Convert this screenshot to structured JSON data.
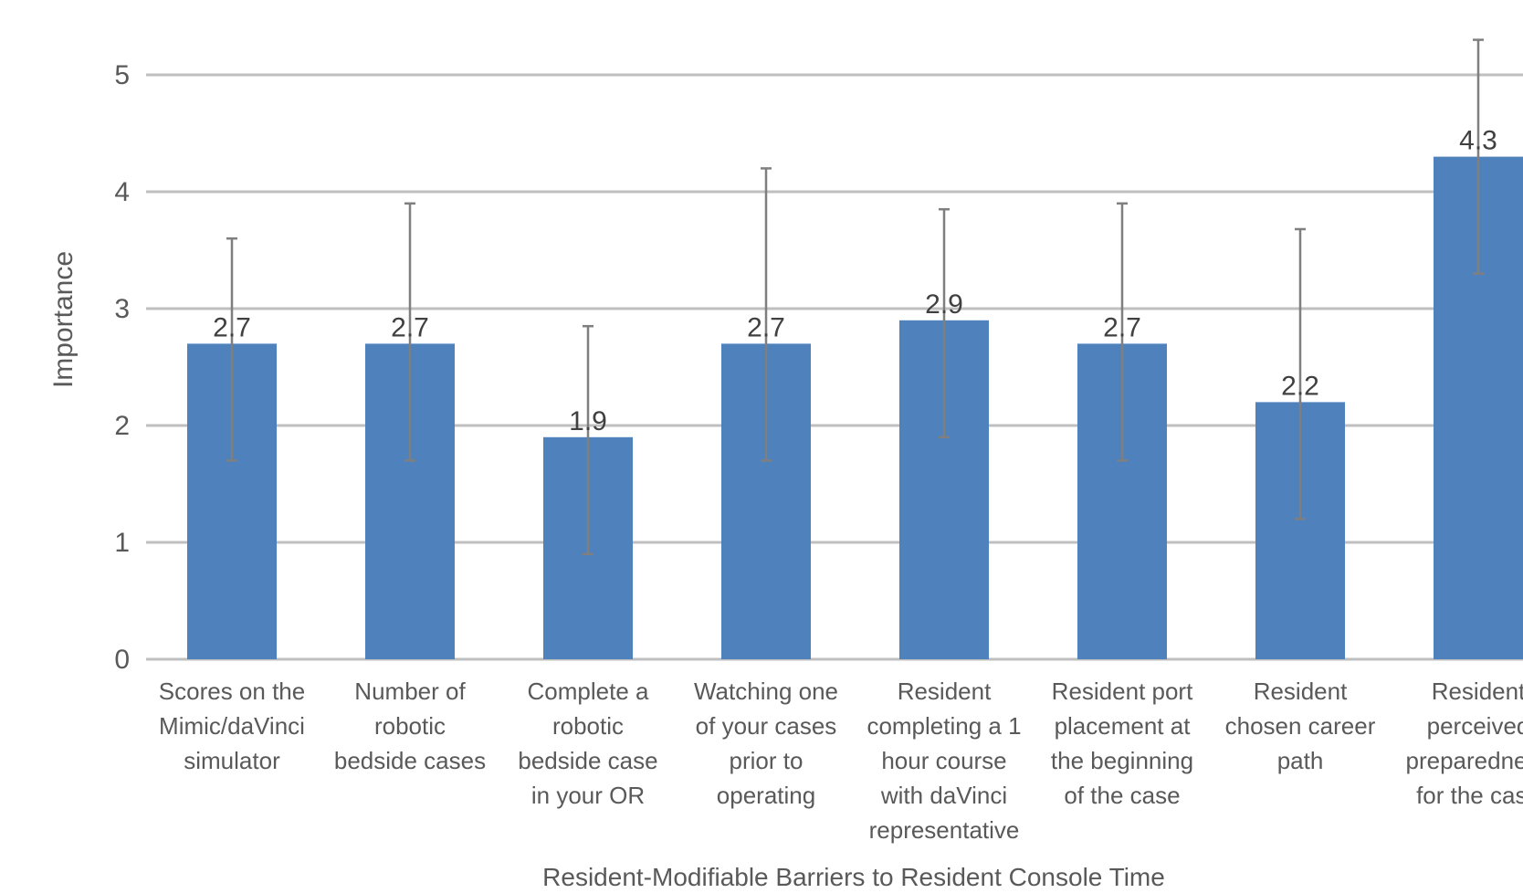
{
  "chart_data": {
    "type": "bar",
    "title": "",
    "xlabel": "Resident-Modifiable Barriers to Resident Console Time",
    "ylabel": "Importance",
    "ylim": [
      0,
      5
    ],
    "yticks": [
      "0",
      "1",
      "2",
      "3",
      "4",
      "5"
    ],
    "grid": true,
    "legend": "none",
    "colors": {
      "bar": "#4F81BD",
      "grid": "#BFBFBF",
      "error_bar": "#7F7F7F",
      "text": "#595959",
      "data_label": "#404040"
    },
    "categories": [
      [
        "Scores on the",
        "Mimic/daVinci",
        "simulator"
      ],
      [
        "Number of",
        "robotic",
        "bedside cases"
      ],
      [
        "Complete a",
        "robotic",
        "bedside case",
        "in your OR"
      ],
      [
        "Watching one",
        "of your cases",
        "prior to",
        "operating"
      ],
      [
        "Resident",
        "completing a 1",
        "hour course",
        "with daVinci",
        "representative"
      ],
      [
        "Resident port",
        "placement at",
        "the beginning",
        "of the case"
      ],
      [
        "Resident",
        "chosen career",
        "path"
      ],
      [
        "Resident",
        "perceived",
        "preparedness",
        "for the case"
      ]
    ],
    "values": [
      2.7,
      2.7,
      1.9,
      2.7,
      2.9,
      2.7,
      2.2,
      4.3
    ],
    "data_labels": [
      "2.7",
      "2.7",
      "1.9",
      "2.7",
      "2.9",
      "2.7",
      "2.2",
      "4.3"
    ],
    "error_low": [
      1.7,
      1.7,
      0.9,
      1.7,
      1.9,
      1.7,
      1.2,
      3.3
    ],
    "error_high": [
      3.6,
      3.9,
      2.85,
      4.2,
      3.85,
      3.9,
      3.68,
      5.3
    ]
  }
}
